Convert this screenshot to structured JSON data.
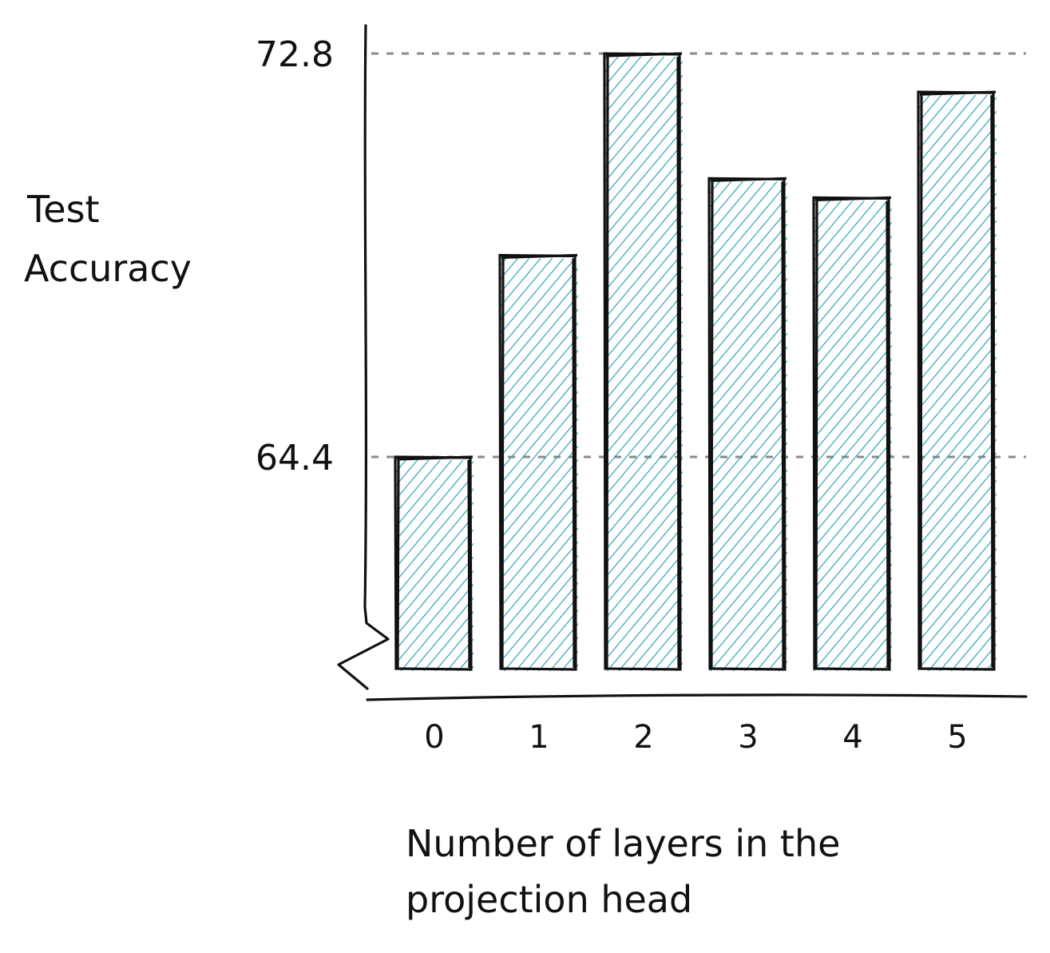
{
  "chart_data": {
    "type": "bar",
    "categories": [
      "0",
      "1",
      "2",
      "3",
      "4",
      "5"
    ],
    "values": [
      64.4,
      68.6,
      72.8,
      70.2,
      69.8,
      72.0
    ],
    "ylabel_lines": [
      "Test",
      "Accuracy"
    ],
    "xlabel_lines": [
      "Number of layers in the",
      "projection head"
    ],
    "yticks": [
      64.4,
      72.8
    ],
    "ytick_labels": [
      "64.4",
      "72.8"
    ],
    "ylim": [
      60,
      72.8
    ],
    "axis_break": true,
    "grid": "dashed lines at tick values",
    "legend": "none",
    "colors": {
      "bar_fill": "#1a9bb0",
      "outline": "#111111",
      "grid": "#8a8a8a"
    },
    "style": "hand-drawn, hatched fill"
  }
}
